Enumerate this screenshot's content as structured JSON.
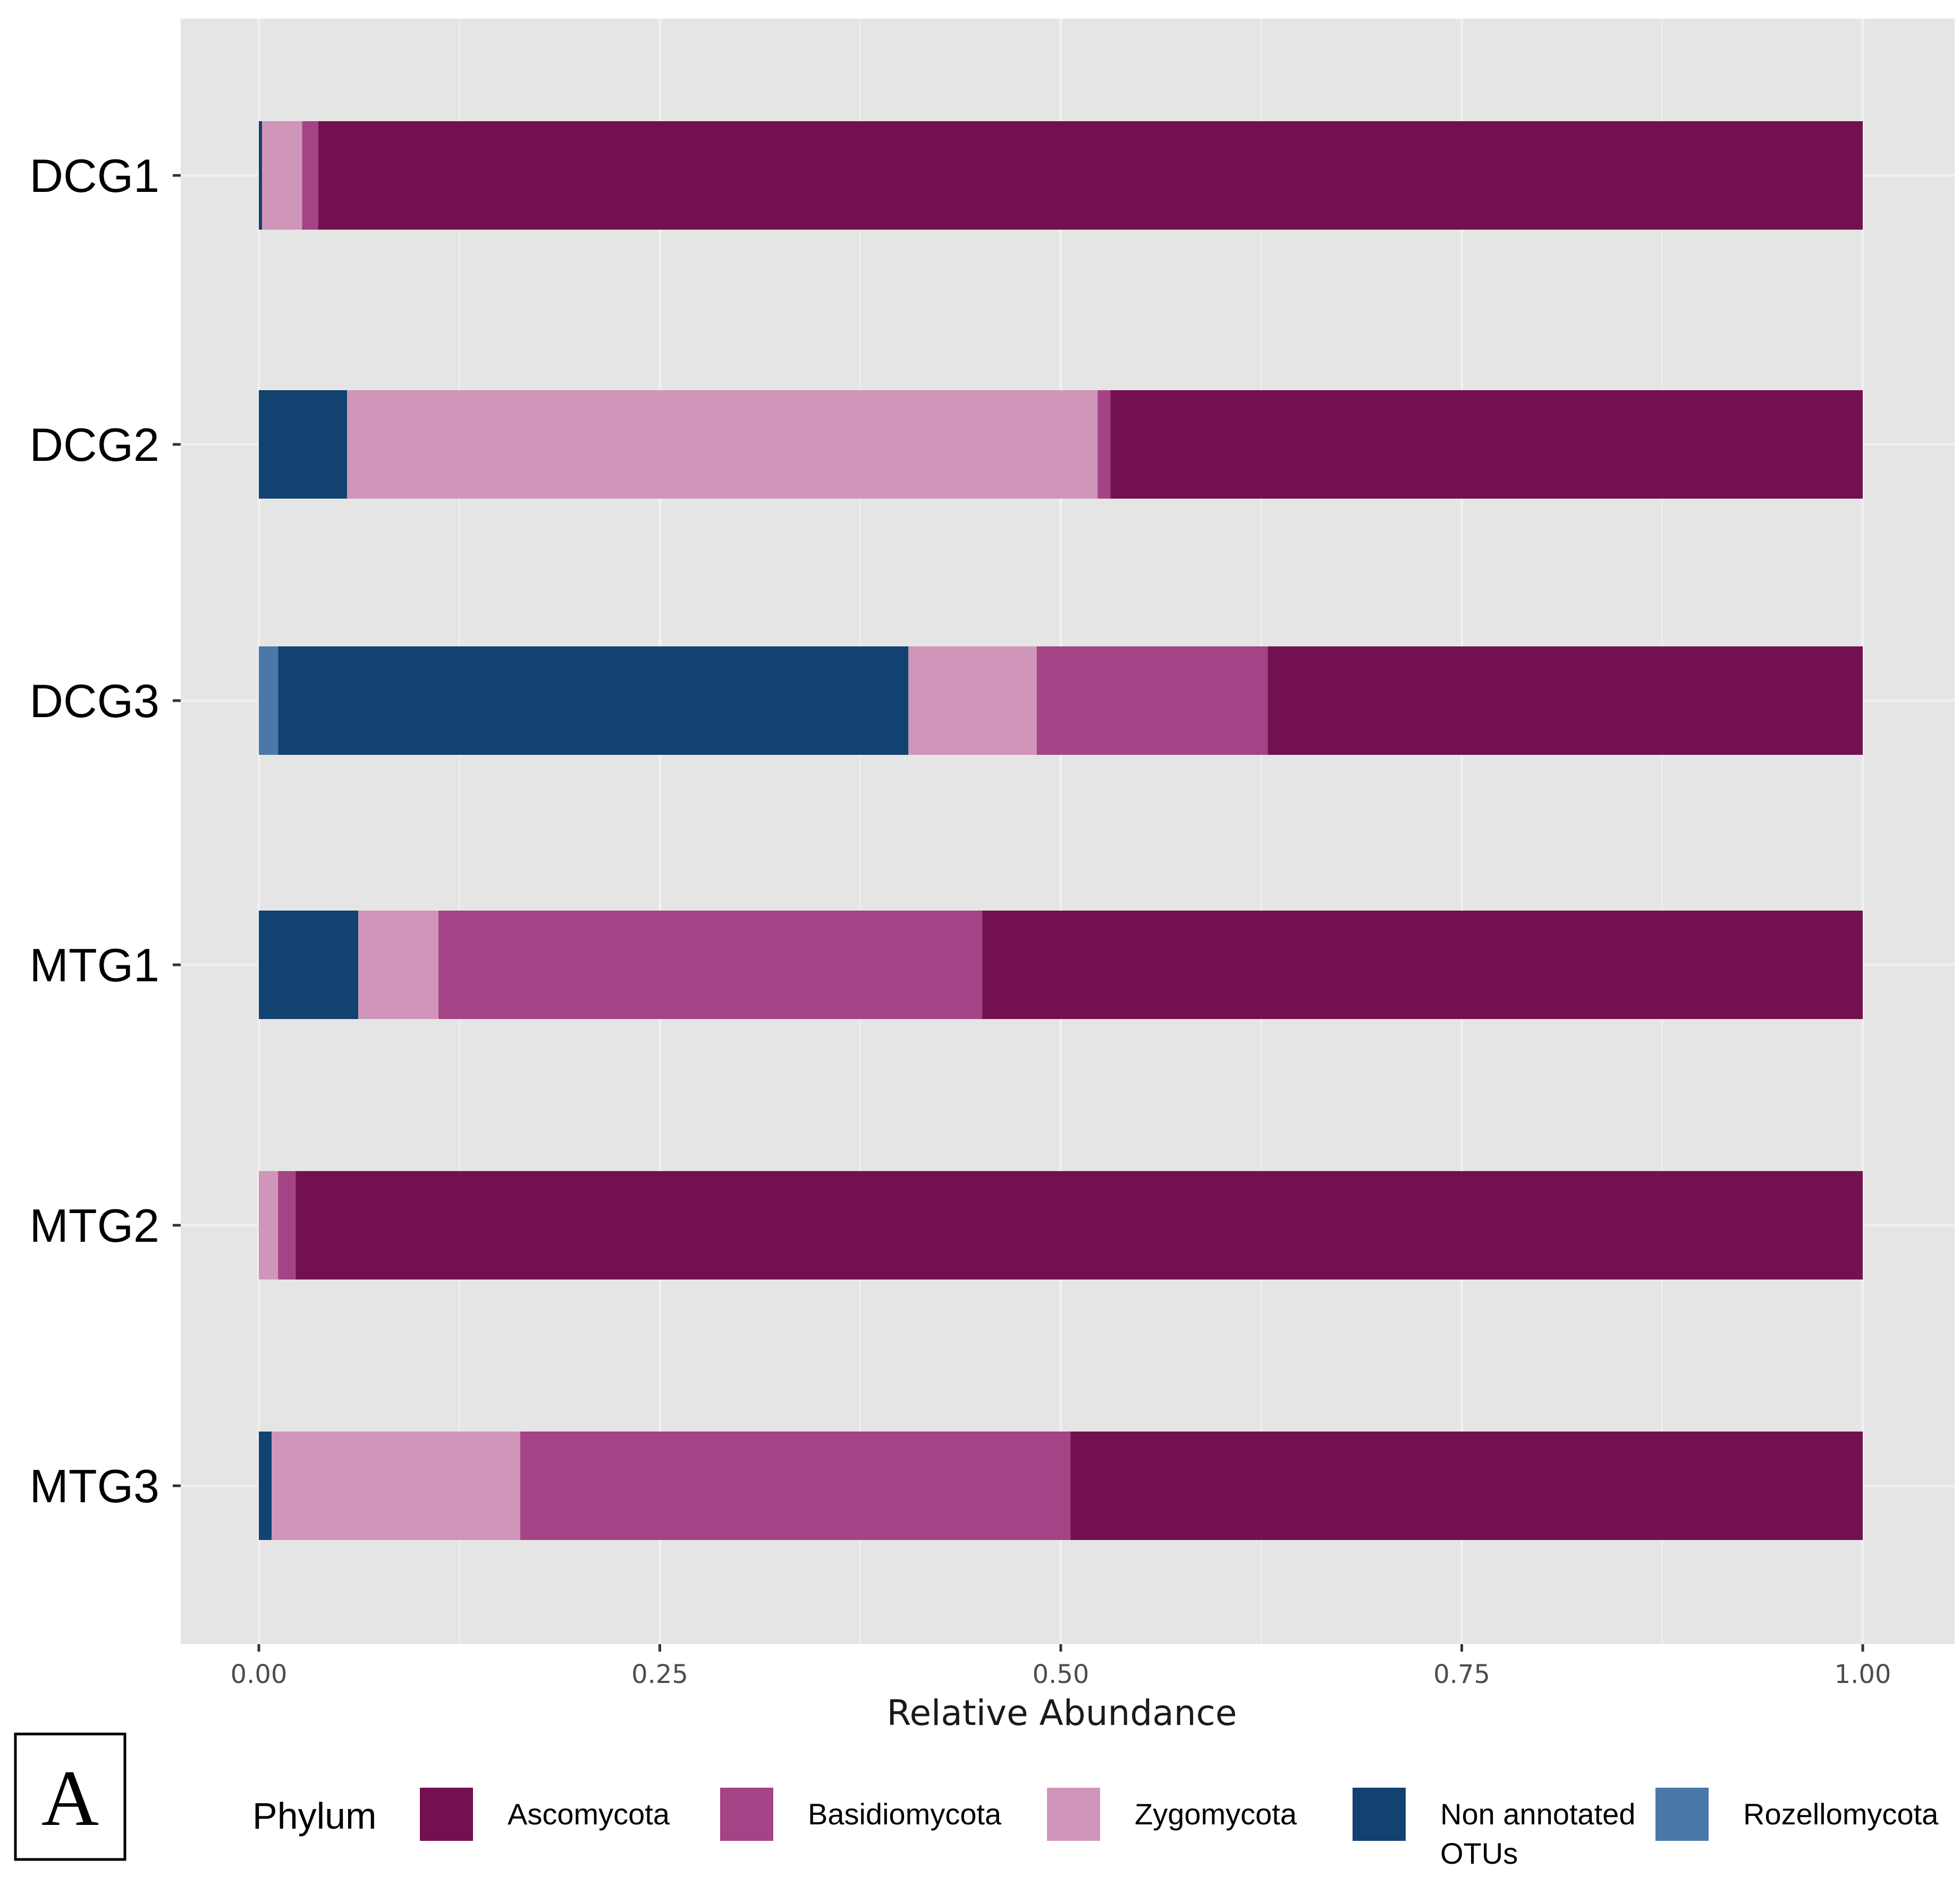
{
  "chart_data": {
    "type": "bar",
    "orientation": "horizontal",
    "stacked": true,
    "panel_label": "A",
    "categories": [
      "DCG1",
      "DCG2",
      "DCG3",
      "MTG1",
      "MTG2",
      "MTG3"
    ],
    "series": [
      {
        "name": "Rozellomycota",
        "legend_label": "Rozellomycota",
        "color": "#4a78a8",
        "values": [
          0.0,
          0.0,
          0.012,
          0.0,
          0.0,
          0.0
        ]
      },
      {
        "name": "Non annotated OTUs",
        "legend_label": [
          "Non annotated",
          "OTUs"
        ],
        "color": "#12426f",
        "values": [
          0.002,
          0.055,
          0.393,
          0.062,
          0.0,
          0.008
        ]
      },
      {
        "name": "Zygomycota",
        "legend_label": "Zygomycota",
        "color": "#cf96b9",
        "values": [
          0.025,
          0.468,
          0.08,
          0.05,
          0.012,
          0.155
        ]
      },
      {
        "name": "Basidiomycota",
        "legend_label": "Basidiomycota",
        "color": "#a44386",
        "values": [
          0.01,
          0.008,
          0.144,
          0.339,
          0.011,
          0.343
        ]
      },
      {
        "name": "Ascomycota",
        "legend_label": "Ascomycota",
        "color": "#731150",
        "values": [
          0.963,
          0.469,
          0.371,
          0.549,
          0.977,
          0.494
        ]
      }
    ],
    "legend_order": [
      "Ascomycota",
      "Basidiomycota",
      "Zygomycota",
      "Non annotated OTUs",
      "Rozellomycota"
    ],
    "legend_title": "Phylum",
    "legend_position": "bottom",
    "xlabel": "Relative Abundance",
    "ylabel": "",
    "xlim": [
      0,
      1
    ],
    "xticks": [
      0.0,
      0.25,
      0.5,
      0.75,
      1.0
    ],
    "xtick_labels": [
      "0.00",
      "0.25",
      "0.50",
      "0.75",
      "1.00"
    ],
    "grid": true,
    "panel_background": "#e5e5e5",
    "grid_color": "#f0f0f0"
  }
}
